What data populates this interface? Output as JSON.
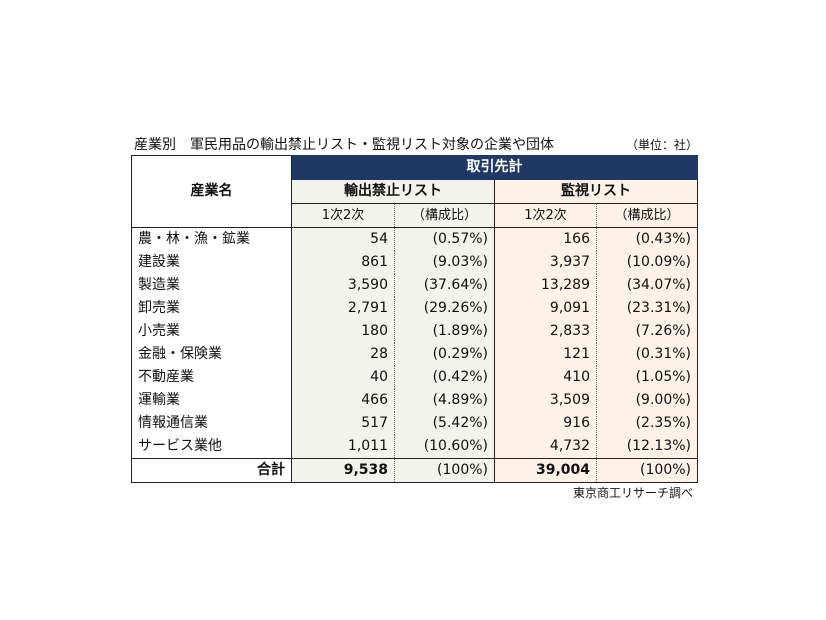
{
  "title": "産業別　軍民用品の輸出禁止リスト・監視リスト対象の企業や団体",
  "unit": "（単位：社）",
  "source": "東京商工リサーチ調べ",
  "header": {
    "industry": "産業名",
    "band": "取引先計",
    "export_ban": "輸出禁止リスト",
    "monitor": "監視リスト",
    "count": "1次2次",
    "ratio": "（構成比）"
  },
  "rows": [
    {
      "name": "農・林・漁・鉱業",
      "ex_count": "54",
      "ex_ratio": "(0.57%)",
      "mo_count": "166",
      "mo_ratio": "(0.43%)"
    },
    {
      "name": "建設業",
      "ex_count": "861",
      "ex_ratio": "(9.03%)",
      "mo_count": "3,937",
      "mo_ratio": "(10.09%)"
    },
    {
      "name": "製造業",
      "ex_count": "3,590",
      "ex_ratio": "(37.64%)",
      "mo_count": "13,289",
      "mo_ratio": "(34.07%)"
    },
    {
      "name": "卸売業",
      "ex_count": "2,791",
      "ex_ratio": "(29.26%)",
      "mo_count": "9,091",
      "mo_ratio": "(23.31%)"
    },
    {
      "name": "小売業",
      "ex_count": "180",
      "ex_ratio": "(1.89%)",
      "mo_count": "2,833",
      "mo_ratio": "(7.26%)"
    },
    {
      "name": "金融・保険業",
      "ex_count": "28",
      "ex_ratio": "(0.29%)",
      "mo_count": "121",
      "mo_ratio": "(0.31%)"
    },
    {
      "name": "不動産業",
      "ex_count": "40",
      "ex_ratio": "(0.42%)",
      "mo_count": "410",
      "mo_ratio": "(1.05%)"
    },
    {
      "name": "運輸業",
      "ex_count": "466",
      "ex_ratio": "(4.89%)",
      "mo_count": "3,509",
      "mo_ratio": "(9.00%)"
    },
    {
      "name": "情報通信業",
      "ex_count": "517",
      "ex_ratio": "(5.42%)",
      "mo_count": "916",
      "mo_ratio": "(2.35%)"
    },
    {
      "name": "サービス業他",
      "ex_count": "1,011",
      "ex_ratio": "(10.60%)",
      "mo_count": "4,732",
      "mo_ratio": "(12.13%)"
    }
  ],
  "total": {
    "name": "合計",
    "ex_count": "9,538",
    "ex_ratio": "(100%)",
    "mo_count": "39,004",
    "mo_ratio": "(100%)"
  },
  "colors": {
    "band": "#1f3864",
    "export_bg": "#f1f3ec",
    "monitor_bg": "#fdf1e8"
  }
}
